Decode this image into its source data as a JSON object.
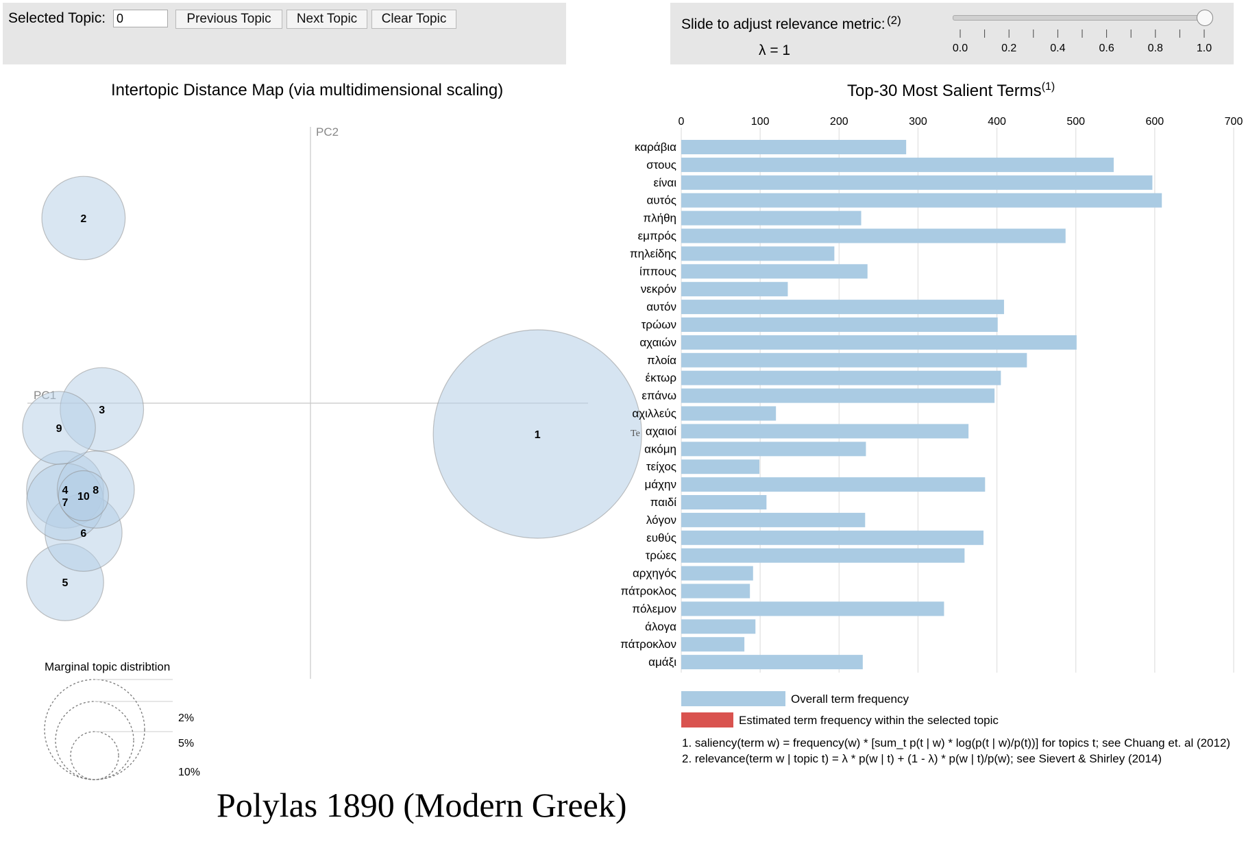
{
  "controls": {
    "selected_topic_label": "Selected Topic:",
    "selected_topic_value": "0",
    "prev_label": "Previous Topic",
    "next_label": "Next Topic",
    "clear_label": "Clear Topic",
    "slider_label": "Slide to adjust relevance metric:",
    "slider_footnote": "(2)",
    "lambda_text": "λ = 1",
    "lambda_value": 1,
    "slider_ticks": [
      "0.0",
      "0.2",
      "0.4",
      "0.6",
      "0.8",
      "1.0"
    ]
  },
  "map": {
    "title": "Intertopic Distance Map (via multidimensional scaling)",
    "pc1_label": "PC1",
    "pc2_label": "PC2",
    "overlap_text": "Te",
    "legend_title": "Marginal topic distribtion",
    "legend_sizes": [
      "2%",
      "5%",
      "10%"
    ]
  },
  "bars": {
    "title": "Top-30 Most Salient Terms",
    "title_footnote": "(1)",
    "legend_overall": "Overall term frequency",
    "legend_estimated": "Estimated term frequency within the selected topic",
    "note1": "1. saliency(term w) = frequency(w) * [sum_t p(t | w) * log(p(t | w)/p(t))] for topics t; see Chuang et. al (2012)",
    "note2": "2. relevance(term w | topic t) = λ * p(w | t) + (1 - λ) * p(w | t)/p(w); see Sievert & Shirley (2014)"
  },
  "caption": "Polylas 1890 (Modern Greek)",
  "colors": {
    "bubble": "#b4cde6",
    "bar": "#aacbe3",
    "selected_bar": "#d9534f",
    "panel": "#e6e6e6"
  },
  "chart_data": [
    {
      "type": "scatter",
      "title": "Intertopic Distance Map (via multidimensional scaling)",
      "xlabel": "PC1",
      "ylabel": "PC2",
      "points": [
        {
          "label": "1",
          "x": 0.37,
          "y": -0.05,
          "size": 1.0
        },
        {
          "label": "2",
          "x": -0.37,
          "y": 0.3,
          "size": 0.4
        },
        {
          "label": "3",
          "x": -0.34,
          "y": -0.01,
          "size": 0.4
        },
        {
          "label": "4",
          "x": -0.4,
          "y": -0.14,
          "size": 0.37
        },
        {
          "label": "5",
          "x": -0.4,
          "y": -0.29,
          "size": 0.37
        },
        {
          "label": "6",
          "x": -0.37,
          "y": -0.21,
          "size": 0.37
        },
        {
          "label": "7",
          "x": -0.4,
          "y": -0.16,
          "size": 0.37
        },
        {
          "label": "8",
          "x": -0.35,
          "y": -0.14,
          "size": 0.37
        },
        {
          "label": "9",
          "x": -0.41,
          "y": -0.04,
          "size": 0.35
        },
        {
          "label": "10",
          "x": -0.37,
          "y": -0.15,
          "size": 0.24
        }
      ]
    },
    {
      "type": "bar",
      "orientation": "horizontal",
      "title": "Top-30 Most Salient Terms",
      "xlim": [
        0,
        700
      ],
      "xticks": [
        0,
        100,
        200,
        300,
        400,
        500,
        600,
        700
      ],
      "categories": [
        "καράβια",
        "στους",
        "είναι",
        "αυτός",
        "πλήθη",
        "εμπρός",
        "πηλείδης",
        "ίππους",
        "νεκρόν",
        "αυτόν",
        "τρώων",
        "αχαιών",
        "πλοία",
        "έκτωρ",
        "επάνω",
        "αχιλλεύς",
        "αχαιοί",
        "ακόμη",
        "τείχος",
        "μάχην",
        "παιδί",
        "λόγον",
        "ευθύς",
        "τρώες",
        "αρχηγός",
        "πάτροκλος",
        "πόλεμον",
        "άλογα",
        "πάτροκλον",
        "αμάξι"
      ],
      "series": [
        {
          "name": "Overall term frequency",
          "values": [
            285,
            548,
            597,
            609,
            228,
            487,
            194,
            236,
            135,
            409,
            401,
            501,
            438,
            405,
            397,
            120,
            364,
            234,
            99,
            385,
            108,
            233,
            383,
            359,
            91,
            87,
            333,
            94,
            80,
            230
          ]
        }
      ]
    }
  ]
}
